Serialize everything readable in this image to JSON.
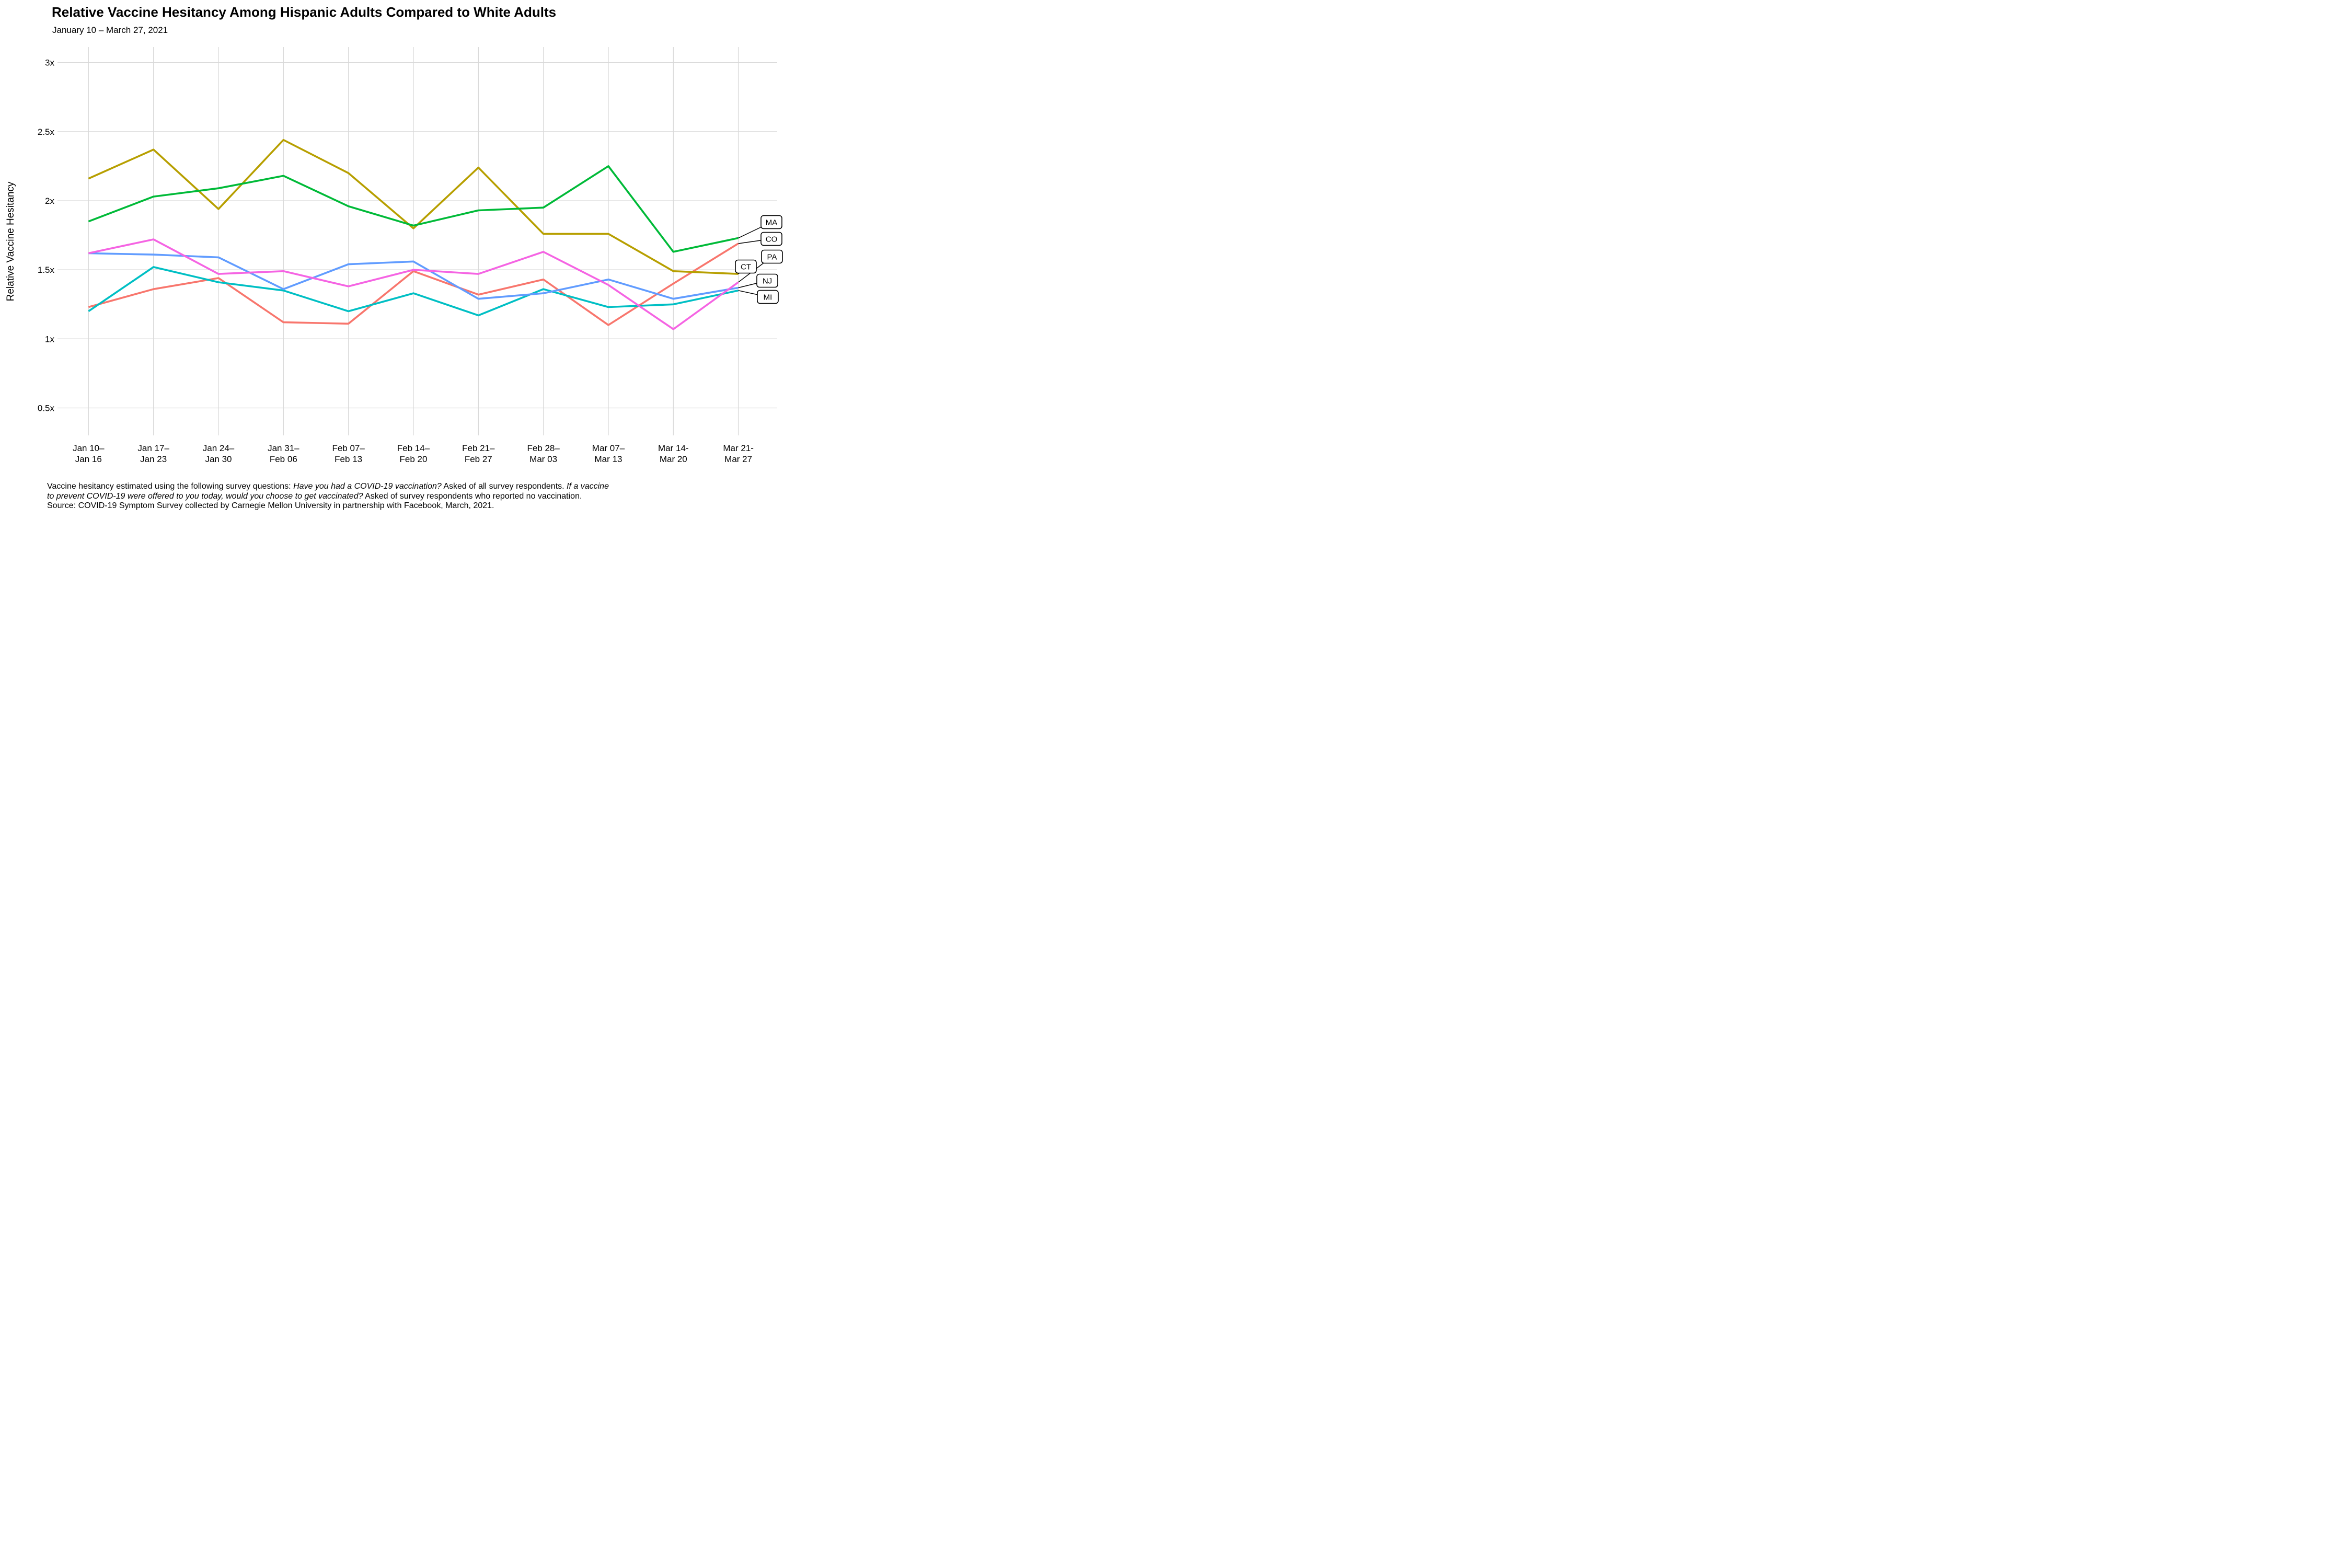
{
  "title": "Relative Vaccine Hesitancy Among Hispanic Adults Compared to White Adults",
  "subtitle": "January 10 – March 27, 2021",
  "y_axis": {
    "title": "Relative Vaccine Hesitancy",
    "ticks": [
      {
        "label": "3x",
        "value": 3
      },
      {
        "label": "2.5x",
        "value": 2.5
      },
      {
        "label": "2x",
        "value": 2
      },
      {
        "label": "1.5x",
        "value": 1.5
      },
      {
        "label": "1x",
        "value": 1
      },
      {
        "label": "0.5x",
        "value": 0.5
      }
    ]
  },
  "x_axis": {
    "ticks": [
      {
        "line1": "Jan 10–",
        "line2": "Jan 16"
      },
      {
        "line1": "Jan 17–",
        "line2": "Jan 23"
      },
      {
        "line1": "Jan 24–",
        "line2": "Jan 30"
      },
      {
        "line1": "Jan 31–",
        "line2": "Feb 06"
      },
      {
        "line1": "Feb 07–",
        "line2": "Feb 13"
      },
      {
        "line1": "Feb 14–",
        "line2": "Feb 20"
      },
      {
        "line1": "Feb 21–",
        "line2": "Feb 27"
      },
      {
        "line1": "Feb 28–",
        "line2": "Mar 03"
      },
      {
        "line1": "Mar 07–",
        "line2": "Mar 13"
      },
      {
        "line1": "Mar 14-",
        "line2": "Mar 20"
      },
      {
        "line1": "Mar 21-",
        "line2": "Mar 27"
      }
    ]
  },
  "chart_data": {
    "type": "line",
    "title": "Relative Vaccine Hesitancy Among Hispanic Adults Compared to White Adults",
    "subtitle": "January 10 – March 27, 2021",
    "xlabel": "",
    "ylabel": "Relative Vaccine Hesitancy",
    "ylim": [
      0.5,
      3
    ],
    "grid": "major-both-light-gray",
    "legend_position": "right-endpoint-callout-boxes",
    "categories": [
      "Jan 10–Jan 16",
      "Jan 17–Jan 23",
      "Jan 24–Jan 30",
      "Jan 31–Feb 06",
      "Feb 07–Feb 13",
      "Feb 14–Feb 20",
      "Feb 21–Feb 27",
      "Feb 28–Mar 03",
      "Mar 07–Mar 13",
      "Mar 14-Mar 20",
      "Mar 21-Mar 27"
    ],
    "series": [
      {
        "name": "CO",
        "color": "#F8766D",
        "values": [
          1.23,
          1.36,
          1.44,
          1.12,
          1.11,
          1.49,
          1.32,
          1.43,
          1.1,
          1.4,
          1.69
        ]
      },
      {
        "name": "CT",
        "color": "#B79F00",
        "values": [
          2.16,
          2.37,
          1.94,
          2.44,
          2.2,
          1.8,
          2.24,
          1.76,
          1.76,
          1.49,
          1.47
        ]
      },
      {
        "name": "MA",
        "color": "#00BA38",
        "values": [
          1.85,
          2.03,
          2.09,
          2.18,
          1.96,
          1.82,
          1.93,
          1.95,
          2.25,
          1.63,
          1.73
        ]
      },
      {
        "name": "MI",
        "color": "#00BFC4",
        "values": [
          1.2,
          1.52,
          1.41,
          1.35,
          1.2,
          1.33,
          1.17,
          1.36,
          1.23,
          1.25,
          1.35
        ]
      },
      {
        "name": "NJ",
        "color": "#619CFF",
        "values": [
          1.62,
          1.61,
          1.59,
          1.36,
          1.54,
          1.56,
          1.29,
          1.33,
          1.43,
          1.29,
          1.37
        ]
      },
      {
        "name": "PA",
        "color": "#F564E3",
        "values": [
          1.62,
          1.72,
          1.47,
          1.49,
          1.38,
          1.5,
          1.47,
          1.63,
          1.39,
          1.07,
          1.41
        ]
      }
    ],
    "end_labels": [
      {
        "series": "MA",
        "bx": 1476,
        "by": 425
      },
      {
        "series": "CO",
        "bx": 1476,
        "by": 457
      },
      {
        "series": "PA",
        "bx": 1477,
        "by": 491
      },
      {
        "series": "CT",
        "bx": 1427,
        "by": 510
      },
      {
        "series": "NJ",
        "bx": 1468,
        "by": 537
      },
      {
        "series": "MI",
        "bx": 1469,
        "by": 568
      }
    ]
  },
  "footer": {
    "lines": [
      [
        {
          "text": "Vaccine hesitancy estimated using the following survey questions: ",
          "italic": false
        },
        {
          "text": "Have you had a COVID-19 vaccination?",
          "italic": true
        },
        {
          "text": " Asked of all survey respondents. ",
          "italic": false
        },
        {
          "text": "If a vaccine",
          "italic": true
        }
      ],
      [
        {
          "text": "to prevent COVID-19 were offered to you today, would you choose to get vaccinated?",
          "italic": true
        },
        {
          "text": " Asked of survey respondents who reported no vaccination.",
          "italic": false
        }
      ],
      [
        {
          "text": "Source: COVID-19 Symptom Survey collected by Carnegie Mellon University in partnership with Facebook, March, 2021.",
          "italic": false
        }
      ]
    ]
  },
  "style": {
    "gridline_color": "#d9d9d9",
    "background": "#ffffff",
    "line_width": 3.6,
    "leader_color": "#000000"
  }
}
